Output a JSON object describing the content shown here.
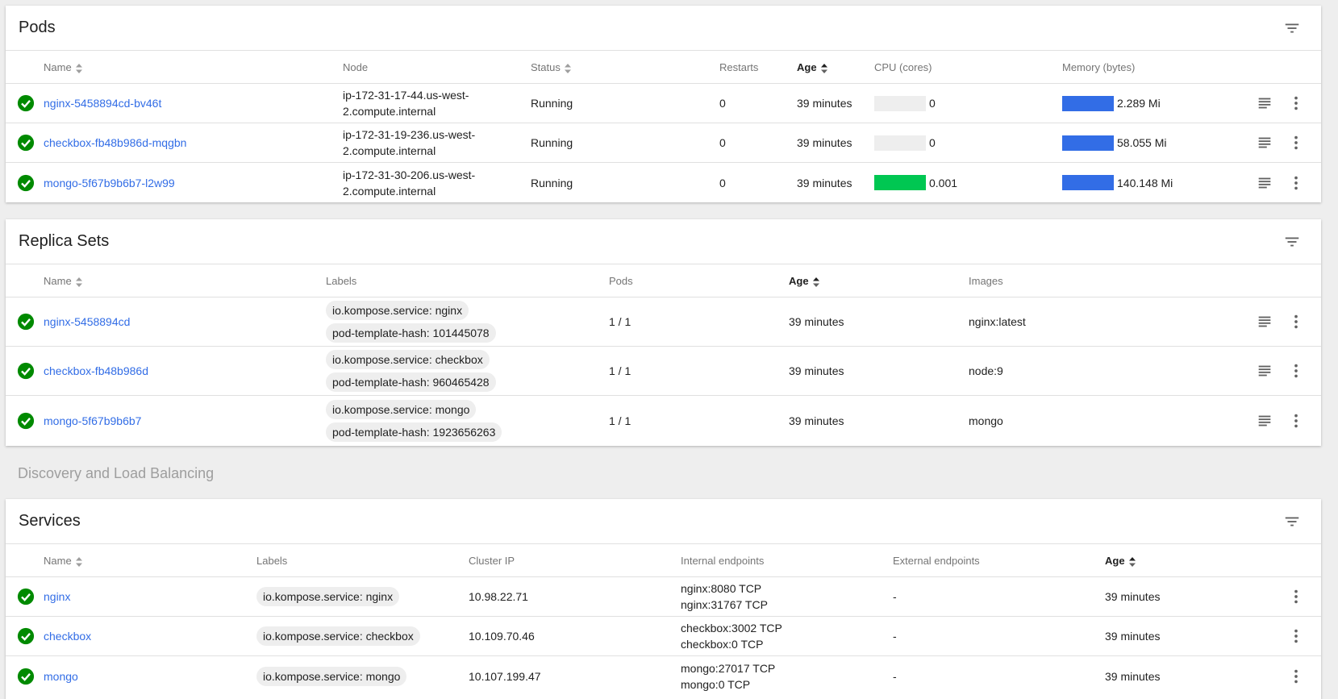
{
  "colors": {
    "link": "#326de6",
    "ok": "#008a00",
    "cpu_bar": "#00c752",
    "memory_bar": "#326de6"
  },
  "pods": {
    "title": "Pods",
    "columns": {
      "name": "Name",
      "node": "Node",
      "status": "Status",
      "restarts": "Restarts",
      "age": "Age",
      "cpu": "CPU (cores)",
      "memory": "Memory (bytes)"
    },
    "rows": [
      {
        "name": "nginx-5458894cd-bv46t",
        "node_line1": "ip-172-31-17-44.us-west-",
        "node_line2": "2.compute.internal",
        "status": "Running",
        "restarts": "0",
        "age": "39 minutes",
        "cpu": "0",
        "cpu_fill": 0,
        "memory": "2.289 Mi",
        "memory_fill": 1
      },
      {
        "name": "checkbox-fb48b986d-mqgbn",
        "node_line1": "ip-172-31-19-236.us-west-",
        "node_line2": "2.compute.internal",
        "status": "Running",
        "restarts": "0",
        "age": "39 minutes",
        "cpu": "0",
        "cpu_fill": 0,
        "memory": "58.055 Mi",
        "memory_fill": 1
      },
      {
        "name": "mongo-5f67b9b6b7-l2w99",
        "node_line1": "ip-172-31-30-206.us-west-",
        "node_line2": "2.compute.internal",
        "status": "Running",
        "restarts": "0",
        "age": "39 minutes",
        "cpu": "0.001",
        "cpu_fill": 1,
        "memory": "140.148 Mi",
        "memory_fill": 1
      }
    ]
  },
  "replica_sets": {
    "title": "Replica Sets",
    "columns": {
      "name": "Name",
      "labels": "Labels",
      "pods": "Pods",
      "age": "Age",
      "images": "Images"
    },
    "rows": [
      {
        "name": "nginx-5458894cd",
        "label1": "io.kompose.service: nginx",
        "label2": "pod-template-hash: 101445078",
        "pods": "1 / 1",
        "age": "39 minutes",
        "images": "nginx:latest"
      },
      {
        "name": "checkbox-fb48b986d",
        "label1": "io.kompose.service: checkbox",
        "label2": "pod-template-hash: 960465428",
        "pods": "1 / 1",
        "age": "39 minutes",
        "images": "node:9"
      },
      {
        "name": "mongo-5f67b9b6b7",
        "label1": "io.kompose.service: mongo",
        "label2": "pod-template-hash: 1923656263",
        "pods": "1 / 1",
        "age": "39 minutes",
        "images": "mongo"
      }
    ]
  },
  "section_heading": "Discovery and Load Balancing",
  "services": {
    "title": "Services",
    "columns": {
      "name": "Name",
      "labels": "Labels",
      "cluster_ip": "Cluster IP",
      "internal": "Internal endpoints",
      "external": "External endpoints",
      "age": "Age"
    },
    "rows": [
      {
        "name": "nginx",
        "label": "io.kompose.service: nginx",
        "cluster_ip": "10.98.22.71",
        "internal1": "nginx:8080 TCP",
        "internal2": "nginx:31767 TCP",
        "external": "-",
        "age": "39 minutes"
      },
      {
        "name": "checkbox",
        "label": "io.kompose.service: checkbox",
        "cluster_ip": "10.109.70.46",
        "internal1": "checkbox:3002 TCP",
        "internal2": "checkbox:0 TCP",
        "external": "-",
        "age": "39 minutes"
      },
      {
        "name": "mongo",
        "label": "io.kompose.service: mongo",
        "cluster_ip": "10.107.199.47",
        "internal1": "mongo:27017 TCP",
        "internal2": "mongo:0 TCP",
        "external": "-",
        "age": "39 minutes"
      }
    ]
  }
}
